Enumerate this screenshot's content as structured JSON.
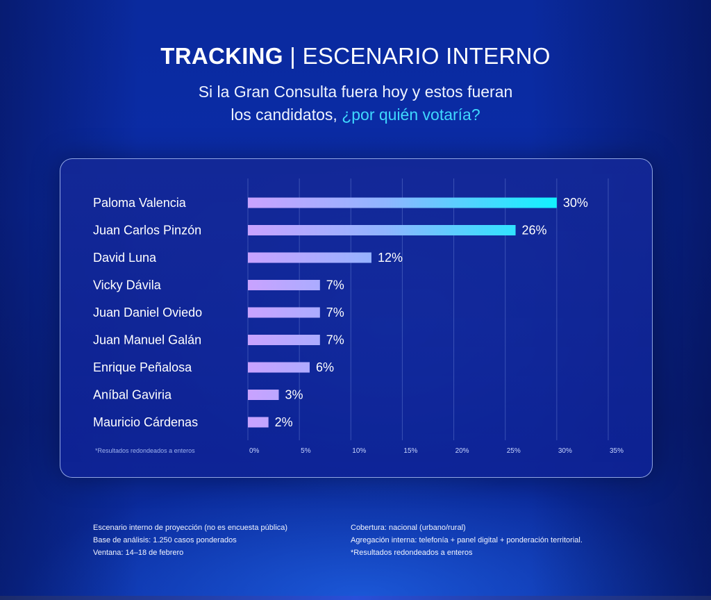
{
  "title": {
    "bold": "TRACKING",
    "separator": " | ",
    "light": "ESCENARIO INTERNO"
  },
  "subtitle": {
    "line1": "Si la Gran Consulta fuera hoy y estos fueran",
    "line2_plain": "los candidatos, ",
    "line2_accent": "¿por quién votaría?"
  },
  "colors": {
    "bar_start": "#c9a2ff",
    "bar_mid": "#8fb5ff",
    "bar_end": "#12f2ff",
    "accent": "#3fd8ff"
  },
  "chart_data": {
    "type": "bar",
    "orientation": "horizontal",
    "categories": [
      "Paloma Valencia",
      "Juan Carlos Pinzón",
      "David Luna",
      "Vicky Dávila",
      "Juan Daniel Oviedo",
      "Juan Manuel Galán",
      "Enrique Peñalosa",
      "Aníbal Gaviria",
      "Mauricio Cárdenas"
    ],
    "values": [
      30,
      26,
      12,
      7,
      7,
      7,
      6,
      3,
      2
    ],
    "value_labels": [
      "30%",
      "26%",
      "12%",
      "7%",
      "7%",
      "7%",
      "6%",
      "3%",
      "2%"
    ],
    "xlim": [
      0,
      35
    ],
    "xticks": [
      0,
      5,
      10,
      15,
      20,
      25,
      30,
      35
    ],
    "xtick_labels": [
      "0%",
      "5%",
      "10%",
      "15%",
      "20%",
      "25%",
      "30%",
      "35%"
    ],
    "grid": "vertical",
    "footnote": "*Resultados redondeados a enteros"
  },
  "footer": {
    "left": [
      "Escenario interno de proyección (no es encuesta pública)",
      "Base de análisis: 1.250 casos ponderados",
      "Ventana: 14–18 de febrero"
    ],
    "right": [
      "Cobertura: nacional (urbano/rural)",
      "Agregación interna: telefonía + panel digital + ponderación territorial.",
      "*Resultados redondeados a enteros"
    ]
  }
}
